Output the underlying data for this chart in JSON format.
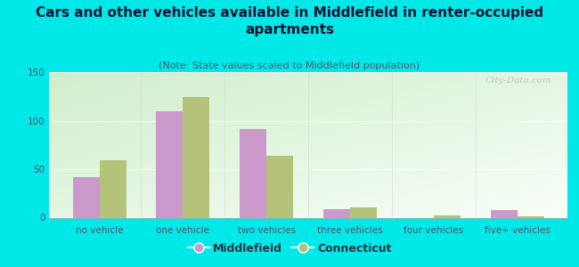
{
  "title": "Cars and other vehicles available in Middlefield in renter-occupied\napartments",
  "subtitle": "(Note: State values scaled to Middlefield population)",
  "categories": [
    "no vehicle",
    "one vehicle",
    "two vehicles",
    "three vehicles",
    "four vehicles",
    "five+ vehicles"
  ],
  "middlefield": [
    42,
    110,
    91,
    9,
    0,
    8
  ],
  "connecticut": [
    59,
    124,
    64,
    11,
    2,
    1
  ],
  "middlefield_color": "#cc99cc",
  "connecticut_color": "#b5c27a",
  "background_outer": "#00e8e8",
  "background_inner": "#e8f5e0",
  "ylim": [
    0,
    150
  ],
  "yticks": [
    0,
    50,
    100,
    150
  ],
  "bar_width": 0.32,
  "title_fontsize": 11,
  "subtitle_fontsize": 8,
  "tick_fontsize": 7.5,
  "legend_fontsize": 9,
  "watermark": "City-Data.com"
}
